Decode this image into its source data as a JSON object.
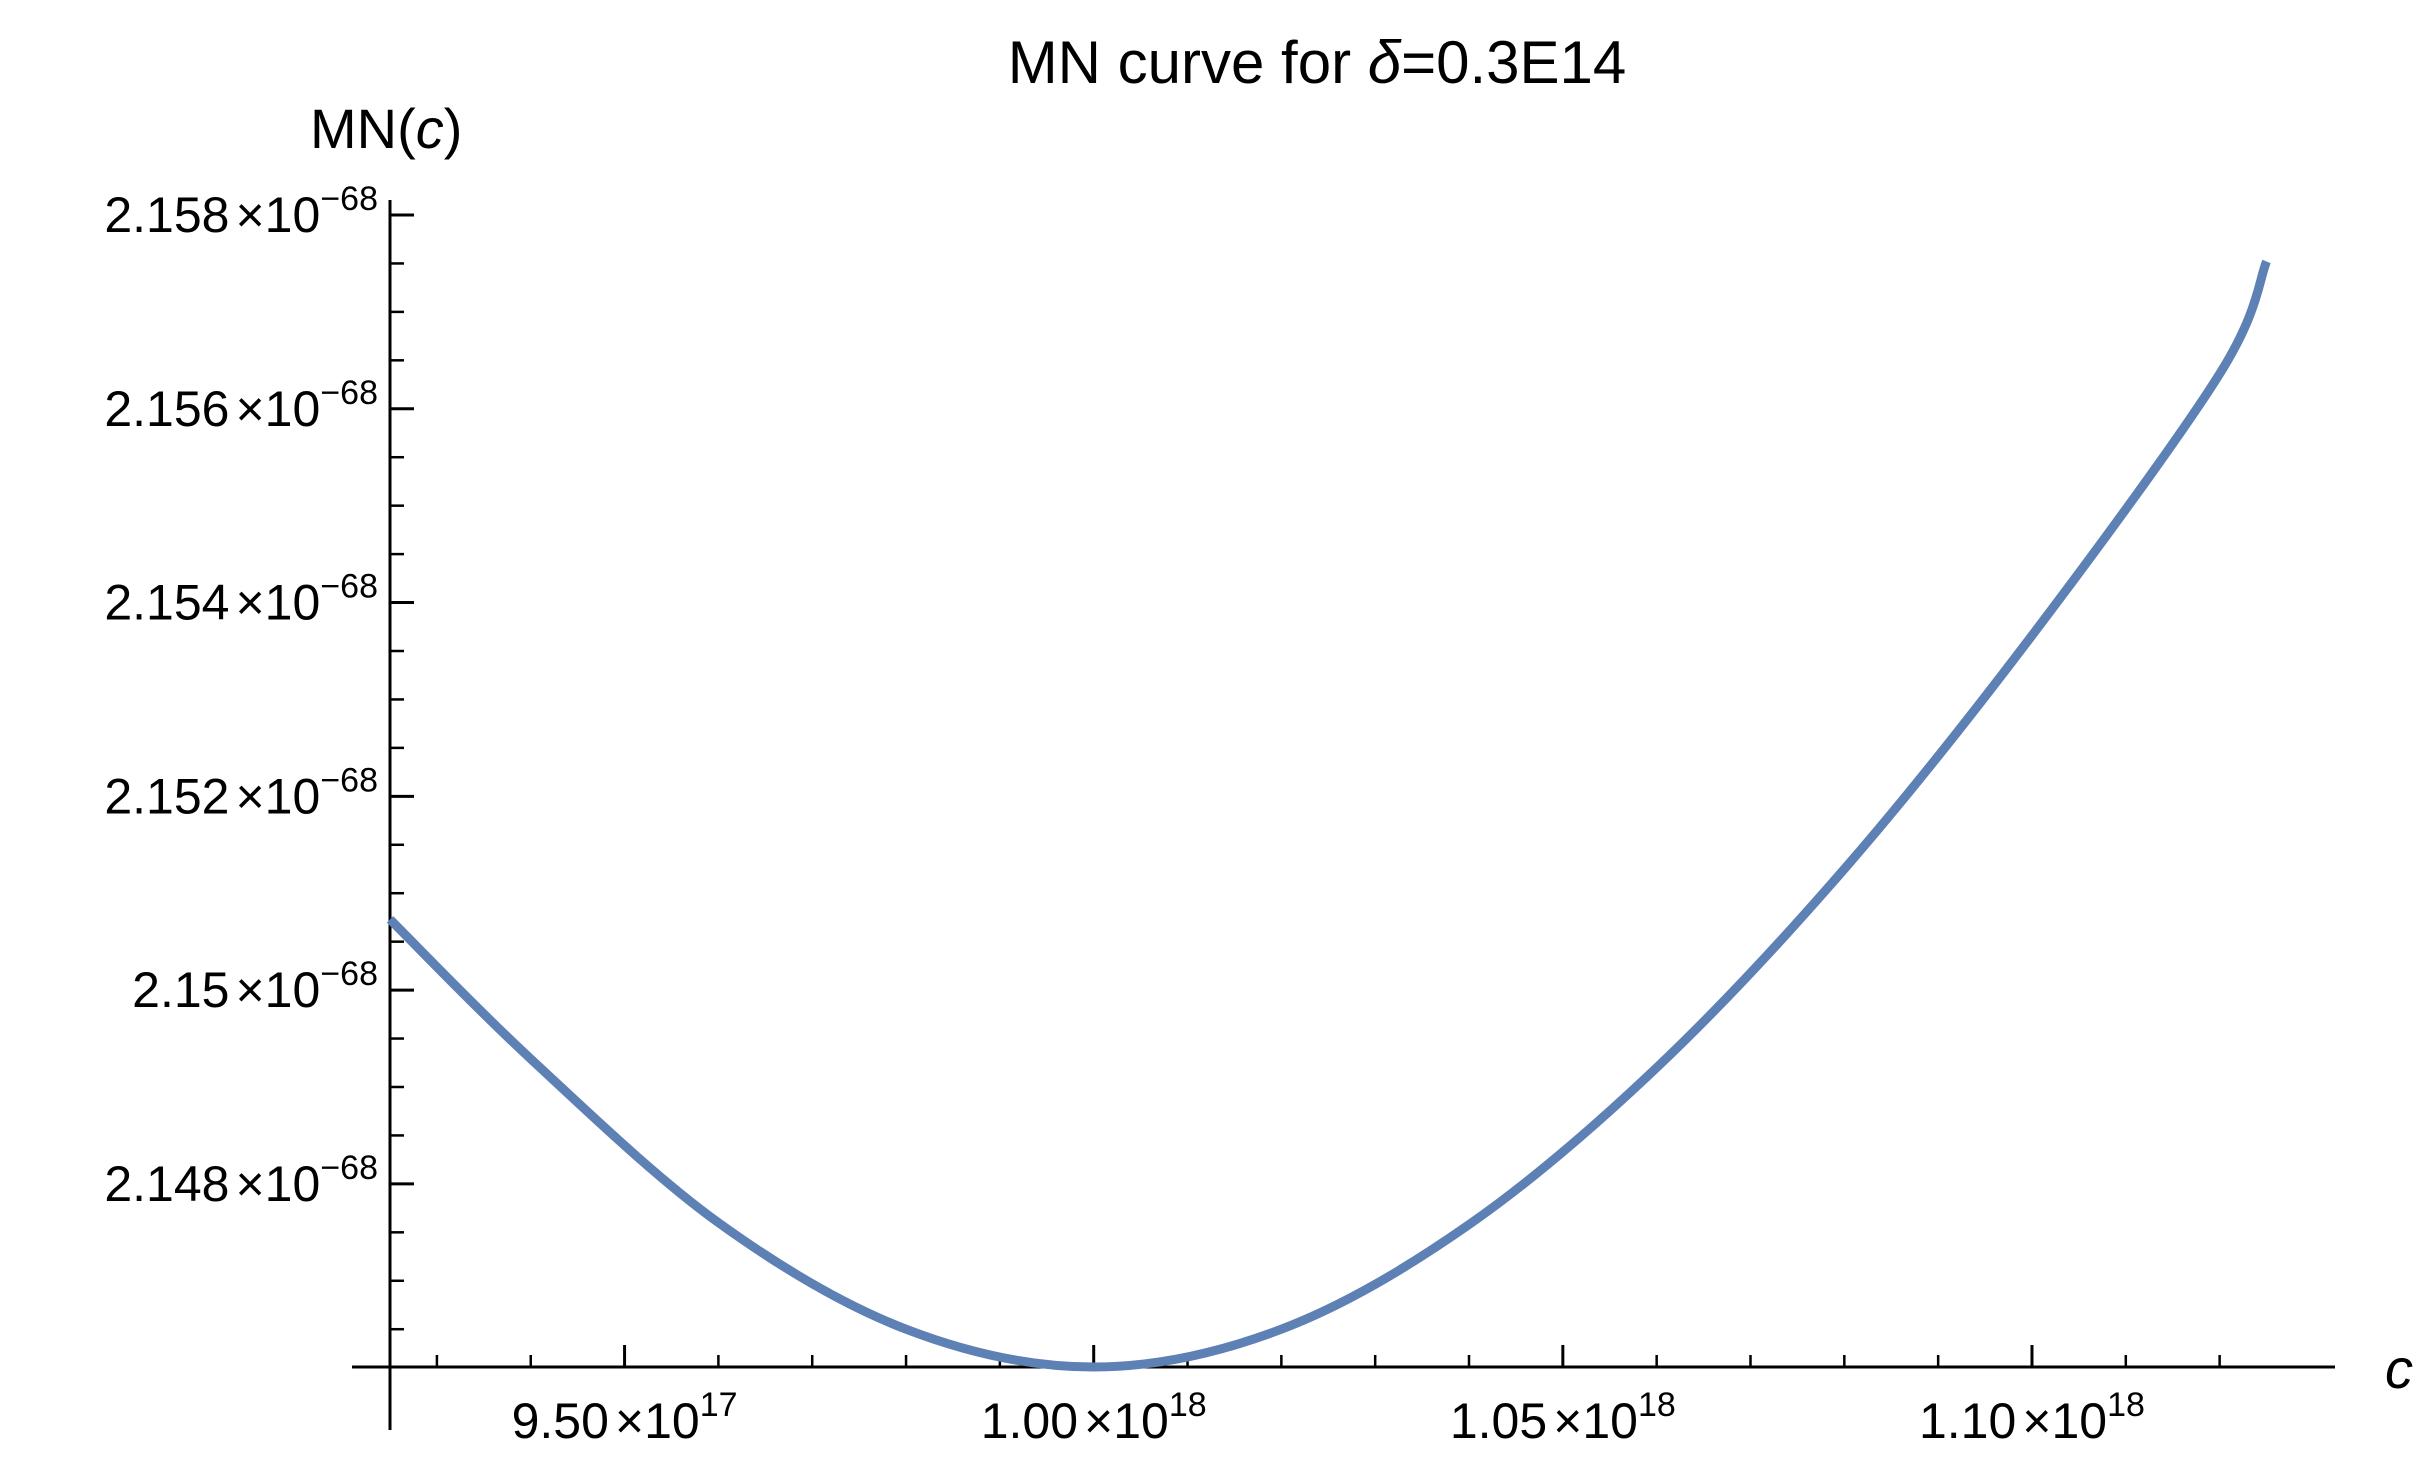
{
  "chart_data": {
    "type": "line",
    "title": "MN curve for δ=0.3E14",
    "title_prefix": "MN curve for ",
    "title_symbol": "δ",
    "title_suffix": "=0.3E14",
    "xlabel": "c",
    "ylabel_prefix": "MN(",
    "ylabel_var": "c",
    "ylabel_suffix": ")",
    "xlim": [
      9.25e+17,
      1.1275e+18
    ],
    "ylim": [
      2.14611e-68,
      2.158e-68
    ],
    "x_ticks": [
      {
        "value": 9.5e+17,
        "mantissa": "9.50",
        "times": "×10",
        "exponent": "17"
      },
      {
        "value": 1e+18,
        "mantissa": "1.00",
        "times": "×10",
        "exponent": "18"
      },
      {
        "value": 1.05e+18,
        "mantissa": "1.05",
        "times": "×10",
        "exponent": "18"
      },
      {
        "value": 1.1e+18,
        "mantissa": "1.10",
        "times": "×10",
        "exponent": "18"
      }
    ],
    "x_minor_step": 1e+16,
    "y_ticks": [
      {
        "value": 2.148e-68,
        "mantissa": "2.148",
        "times": "×10",
        "exponent": "−68"
      },
      {
        "value": 2.15e-68,
        "mantissa": "2.15",
        "times": "×10",
        "exponent": "−68"
      },
      {
        "value": 2.152e-68,
        "mantissa": "2.152",
        "times": "×10",
        "exponent": "−68"
      },
      {
        "value": 2.154e-68,
        "mantissa": "2.154",
        "times": "×10",
        "exponent": "−68"
      },
      {
        "value": 2.156e-68,
        "mantissa": "2.156",
        "times": "×10",
        "exponent": "−68"
      },
      {
        "value": 2.158e-68,
        "mantissa": "2.158",
        "times": "×10",
        "exponent": "−68"
      }
    ],
    "y_minor_step": 5e-72,
    "series": [
      {
        "color": "#5d80b5",
        "x": [
          9.25e+17,
          9.4e+17,
          9.6e+17,
          9.8e+17,
          1e+18,
          1.02e+18,
          1.04e+18,
          1.06e+18,
          1.08e+18,
          1.1e+18,
          1.12e+18,
          1.125e+18
        ],
        "y": [
          2.15073e-68,
          2.14929e-68,
          2.1476e-68,
          2.1465e-68,
          2.14611e-68,
          2.1465e-68,
          2.14758e-68,
          2.1492e-68,
          2.15125e-68,
          2.15366e-68,
          2.15636e-68,
          2.15752e-68
        ]
      }
    ],
    "grid": false,
    "legend": "none"
  }
}
